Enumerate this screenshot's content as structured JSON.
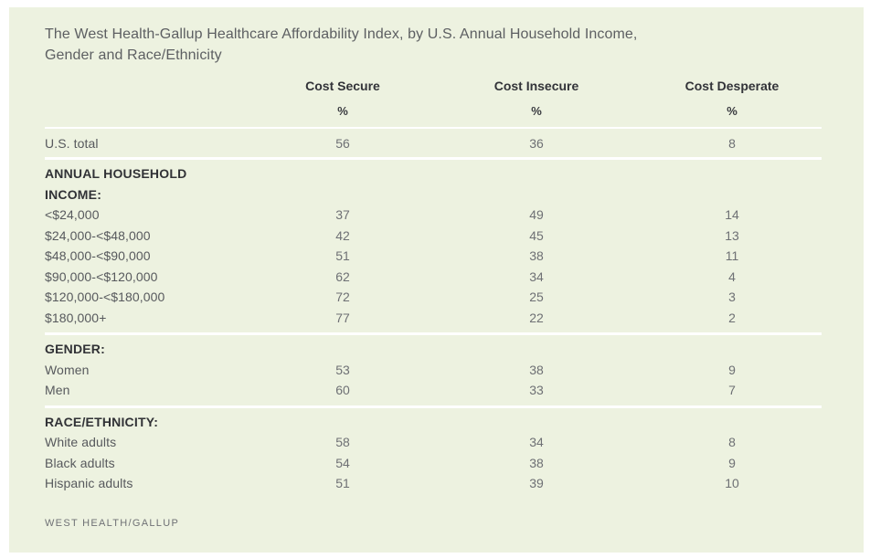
{
  "colors": {
    "page_background": "#ffffff",
    "panel_background": "#edf2e0",
    "divider": "#ffffff",
    "title_text": "#5d5f62",
    "header_text": "#323338",
    "label_text": "#57595d",
    "value_text": "#6e7074",
    "footer_text": "#6f7175"
  },
  "title": {
    "line1": "The West Health-Gallup Healthcare Affordability Index, by U.S. Annual Household Income,",
    "line2": "Gender and Race/Ethnicity"
  },
  "table": {
    "columns": [
      "Cost Secure",
      "Cost Insecure",
      "Cost Desperate"
    ],
    "unit": [
      "%",
      "%",
      "%"
    ],
    "us_total": {
      "label": "U.S. total",
      "values": [
        "56",
        "36",
        "8"
      ]
    },
    "sections": [
      {
        "header_lines": [
          "ANNUAL HOUSEHOLD",
          "INCOME:"
        ],
        "rows": [
          {
            "label": "<$24,000",
            "values": [
              "37",
              "49",
              "14"
            ]
          },
          {
            "label": "$24,000-<$48,000",
            "values": [
              "42",
              "45",
              "13"
            ]
          },
          {
            "label": "$48,000-<$90,000",
            "values": [
              "51",
              "38",
              "11"
            ]
          },
          {
            "label": "$90,000-<$120,000",
            "values": [
              "62",
              "34",
              "4"
            ]
          },
          {
            "label": "$120,000-<$180,000",
            "values": [
              "72",
              "25",
              "3"
            ]
          },
          {
            "label": "$180,000+",
            "values": [
              "77",
              "22",
              "2"
            ]
          }
        ]
      },
      {
        "header_lines": [
          "GENDER:"
        ],
        "rows": [
          {
            "label": "Women",
            "values": [
              "53",
              "38",
              "9"
            ]
          },
          {
            "label": "Men",
            "values": [
              "60",
              "33",
              "7"
            ]
          }
        ]
      },
      {
        "header_lines": [
          "RACE/ETHNICITY:"
        ],
        "rows": [
          {
            "label": "White adults",
            "values": [
              "58",
              "34",
              "8"
            ]
          },
          {
            "label": "Black adults",
            "values": [
              "54",
              "38",
              "9"
            ]
          },
          {
            "label": "Hispanic adults",
            "values": [
              "51",
              "39",
              "10"
            ]
          }
        ]
      }
    ]
  },
  "footer": {
    "attribution": "WEST HEALTH/GALLUP"
  },
  "chart_data": {
    "type": "table",
    "title": "The West Health-Gallup Healthcare Affordability Index, by U.S. Annual Household Income, Gender and Race/Ethnicity",
    "columns": [
      "Cost Secure %",
      "Cost Insecure %",
      "Cost Desperate %"
    ],
    "rows": [
      {
        "group": "U.S. total",
        "category": "U.S. total",
        "values": [
          56,
          36,
          8
        ]
      },
      {
        "group": "Annual household income",
        "category": "<$24,000",
        "values": [
          37,
          49,
          14
        ]
      },
      {
        "group": "Annual household income",
        "category": "$24,000-<$48,000",
        "values": [
          42,
          45,
          13
        ]
      },
      {
        "group": "Annual household income",
        "category": "$48,000-<$90,000",
        "values": [
          51,
          38,
          11
        ]
      },
      {
        "group": "Annual household income",
        "category": "$90,000-<$120,000",
        "values": [
          62,
          34,
          4
        ]
      },
      {
        "group": "Annual household income",
        "category": "$120,000-<$180,000",
        "values": [
          72,
          25,
          3
        ]
      },
      {
        "group": "Annual household income",
        "category": "$180,000+",
        "values": [
          77,
          22,
          2
        ]
      },
      {
        "group": "Gender",
        "category": "Women",
        "values": [
          53,
          38,
          9
        ]
      },
      {
        "group": "Gender",
        "category": "Men",
        "values": [
          60,
          33,
          7
        ]
      },
      {
        "group": "Race/ethnicity",
        "category": "White adults",
        "values": [
          58,
          34,
          8
        ]
      },
      {
        "group": "Race/ethnicity",
        "category": "Black adults",
        "values": [
          54,
          38,
          9
        ]
      },
      {
        "group": "Race/ethnicity",
        "category": "Hispanic adults",
        "values": [
          51,
          39,
          10
        ]
      }
    ],
    "source": "WEST HEALTH/GALLUP"
  }
}
